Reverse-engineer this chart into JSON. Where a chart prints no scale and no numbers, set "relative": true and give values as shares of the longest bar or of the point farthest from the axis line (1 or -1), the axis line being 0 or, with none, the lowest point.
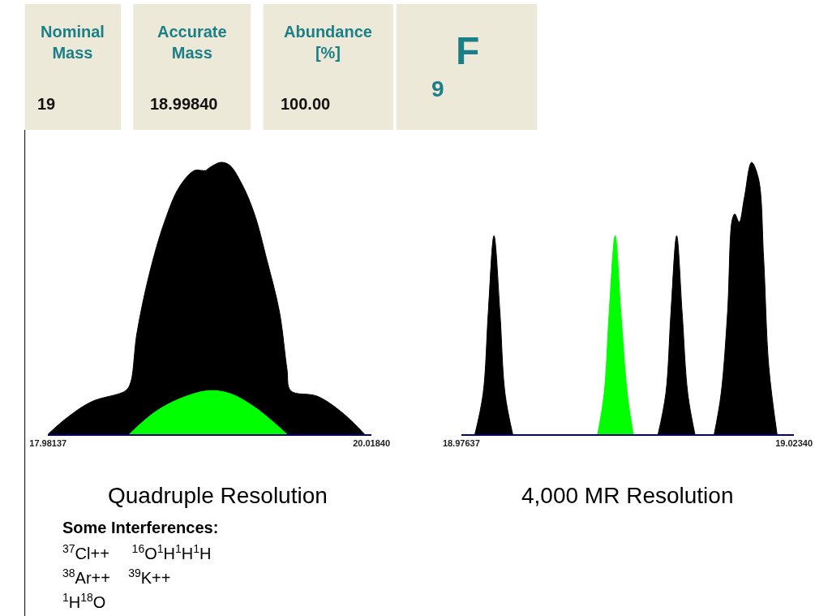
{
  "chart_data": [
    {
      "type": "other",
      "annotations": [
        "Nominal Mass",
        "19",
        "Accurate Mass",
        "18.99840",
        "Abundance [%]",
        "100.00",
        "F",
        "9"
      ]
    },
    {
      "type": "area",
      "relative": true,
      "xlabel": "Quadruple Resolution",
      "xlim": [
        17.98137,
        20.0184
      ],
      "xticks": [
        {
          "value": 17.98137,
          "label": "17.98137"
        },
        {
          "value": 20.0184,
          "label": "20.01840"
        }
      ],
      "annotations": [
        "Some Interferences:",
        "$^{37}$Cl++     $^{16}$O$^{1}$H$^{1}$H$^{1}$H",
        "$^{38}$Ar++    $^{39}$K++",
        "$^{1}$H$^{18}$O"
      ],
      "series": [
        {
          "color": "#000000",
          "x": [
            17.9814,
            18.0995,
            18.2571,
            18.4698,
            18.5013,
            18.5407,
            18.6194,
            18.714,
            18.8085,
            18.903,
            18.9503,
            18.9739,
            18.9975,
            19.0684,
            19.1236,
            19.2023,
            19.2811,
            19.3599,
            19.4386,
            19.4859,
            19.5095,
            19.675,
            19.8325,
            19.9743
          ],
          "values": [
            0,
            0.06,
            0.12,
            0.16,
            0.19,
            0.37,
            0.59,
            0.78,
            0.91,
            0.97,
            0.97,
            0.97,
            0.98,
            1,
            0.99,
            0.92,
            0.81,
            0.64,
            0.45,
            0.24,
            0.16,
            0.14,
            0.08,
            0
          ]
        },
        {
          "color": "#00ff00",
          "x": [
            18.493,
            18.651,
            18.8085,
            18.99,
            19.1236,
            19.2811,
            19.4859
          ],
          "values": [
            0,
            0.08,
            0.13,
            0.16,
            0.15,
            0.1,
            0
          ]
        }
      ]
    },
    {
      "type": "area",
      "relative": true,
      "xlabel": "4,000 MR Resolution",
      "xlim": [
        18.97637,
        19.0234
      ],
      "xticks": [
        {
          "value": 18.97637,
          "label": "18.97637"
        },
        {
          "value": 19.0234,
          "label": "19.02340"
        }
      ],
      "series": [
        {
          "color": "#000000",
          "x": [
            18.9783,
            18.97946,
            18.98019,
            18.98099,
            18.98183,
            18.98255,
            18.98364
          ],
          "values": [
            0,
            0.15,
            0.45,
            0.73,
            0.45,
            0.15,
            0
          ]
        },
        {
          "color": "#00ff00",
          "x": [
            18.99565,
            18.99656,
            18.99728,
            18.99812,
            18.99892,
            18.99983,
            19.00067
          ],
          "values": [
            0,
            0.15,
            0.45,
            0.73,
            0.45,
            0.15,
            0
          ]
        },
        {
          "color": "#000000",
          "x": [
            19.00419,
            19.00528,
            19.00601,
            19.00681,
            19.00758,
            19.00838,
            19.00939
          ],
          "values": [
            0,
            0.15,
            0.45,
            0.73,
            0.45,
            0.15,
            0
          ]
        },
        {
          "color": "#000000",
          "x": [
            19.01212,
            19.0131,
            19.01401,
            19.01467,
            19.01503,
            19.01565,
            19.01638,
            19.0174,
            19.01838,
            19.0191,
            19.01983,
            19.021
          ],
          "values": [
            0,
            0.15,
            0.45,
            0.79,
            0.81,
            0.78,
            0.87,
            1,
            0.94,
            0.65,
            0.25,
            0
          ]
        }
      ]
    }
  ]
}
